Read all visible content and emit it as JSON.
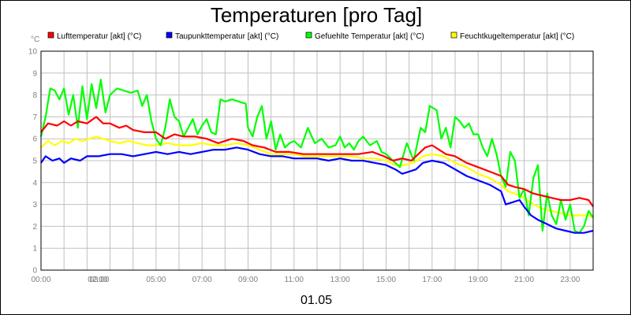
{
  "chart_data": {
    "type": "line",
    "title": "Temperaturen [pro Tag]",
    "ylabel": "°C",
    "xlabel": "01.05",
    "ylim": [
      0,
      10
    ],
    "xlim": [
      0,
      24
    ],
    "grid": true,
    "legend_position": "top",
    "yticks": [
      "0",
      "1",
      "2",
      "3",
      "4",
      "5",
      "6",
      "7",
      "8",
      "9",
      "10"
    ],
    "xticks": [
      {
        "h": 0,
        "label": "00:00"
      },
      {
        "h": 2,
        "label": "02:00"
      },
      {
        "h": 3,
        "label": "03:00"
      },
      {
        "h": 5,
        "label": "05:00"
      },
      {
        "h": 7,
        "label": "07:00"
      },
      {
        "h": 9,
        "label": "09:00"
      },
      {
        "h": 11,
        "label": "11:00"
      },
      {
        "h": 13,
        "label": "13:00"
      },
      {
        "h": 15,
        "label": "15:00"
      },
      {
        "h": 17,
        "label": "17:00"
      },
      {
        "h": 19,
        "label": "19:00"
      },
      {
        "h": 21,
        "label": "21:00"
      },
      {
        "h": 23,
        "label": "23:00"
      }
    ],
    "series": [
      {
        "name": "Lufttemperatur [akt] (°C)",
        "color": "#ff0000",
        "points": [
          [
            0,
            6.3
          ],
          [
            0.3,
            6.7
          ],
          [
            0.7,
            6.6
          ],
          [
            1.0,
            6.8
          ],
          [
            1.3,
            6.6
          ],
          [
            1.6,
            6.8
          ],
          [
            2.0,
            6.7
          ],
          [
            2.4,
            7.0
          ],
          [
            2.7,
            6.7
          ],
          [
            3.0,
            6.7
          ],
          [
            3.4,
            6.5
          ],
          [
            3.7,
            6.6
          ],
          [
            4.0,
            6.4
          ],
          [
            4.5,
            6.3
          ],
          [
            5.0,
            6.3
          ],
          [
            5.4,
            6.0
          ],
          [
            5.8,
            6.2
          ],
          [
            6.2,
            6.1
          ],
          [
            6.7,
            6.1
          ],
          [
            7.2,
            6.0
          ],
          [
            7.7,
            5.8
          ],
          [
            8.3,
            6.0
          ],
          [
            8.8,
            5.9
          ],
          [
            9.2,
            5.7
          ],
          [
            9.7,
            5.6
          ],
          [
            10.2,
            5.4
          ],
          [
            10.8,
            5.4
          ],
          [
            11.4,
            5.3
          ],
          [
            12.0,
            5.3
          ],
          [
            12.6,
            5.3
          ],
          [
            13.2,
            5.3
          ],
          [
            13.8,
            5.3
          ],
          [
            14.4,
            5.4
          ],
          [
            14.9,
            5.2
          ],
          [
            15.3,
            5.0
          ],
          [
            15.7,
            5.1
          ],
          [
            16.1,
            5.0
          ],
          [
            16.4,
            5.3
          ],
          [
            16.7,
            5.6
          ],
          [
            17.0,
            5.7
          ],
          [
            17.3,
            5.5
          ],
          [
            17.6,
            5.3
          ],
          [
            18.0,
            5.2
          ],
          [
            18.5,
            4.9
          ],
          [
            19.0,
            4.7
          ],
          [
            19.5,
            4.5
          ],
          [
            20.0,
            4.3
          ],
          [
            20.3,
            3.9
          ],
          [
            20.6,
            3.8
          ],
          [
            21.0,
            3.7
          ],
          [
            21.4,
            3.5
          ],
          [
            21.8,
            3.4
          ],
          [
            22.2,
            3.3
          ],
          [
            22.6,
            3.2
          ],
          [
            23.0,
            3.2
          ],
          [
            23.4,
            3.3
          ],
          [
            23.8,
            3.2
          ],
          [
            24.0,
            2.9
          ]
        ]
      },
      {
        "name": "Taupunkttemperatur [akt] (°C)",
        "color": "#0000ff",
        "points": [
          [
            0,
            4.9
          ],
          [
            0.2,
            5.2
          ],
          [
            0.5,
            5.0
          ],
          [
            0.8,
            5.1
          ],
          [
            1.0,
            4.9
          ],
          [
            1.3,
            5.1
          ],
          [
            1.7,
            5.0
          ],
          [
            2.0,
            5.2
          ],
          [
            2.5,
            5.2
          ],
          [
            3.0,
            5.3
          ],
          [
            3.5,
            5.3
          ],
          [
            4.0,
            5.2
          ],
          [
            4.5,
            5.3
          ],
          [
            5.0,
            5.4
          ],
          [
            5.5,
            5.3
          ],
          [
            6.0,
            5.4
          ],
          [
            6.5,
            5.3
          ],
          [
            7.0,
            5.4
          ],
          [
            7.5,
            5.5
          ],
          [
            8.0,
            5.5
          ],
          [
            8.5,
            5.6
          ],
          [
            9.0,
            5.5
          ],
          [
            9.5,
            5.3
          ],
          [
            10.0,
            5.2
          ],
          [
            10.5,
            5.2
          ],
          [
            11.0,
            5.1
          ],
          [
            11.5,
            5.1
          ],
          [
            12.0,
            5.1
          ],
          [
            12.5,
            5.0
          ],
          [
            13.0,
            5.1
          ],
          [
            13.5,
            5.0
          ],
          [
            14.0,
            5.0
          ],
          [
            14.5,
            4.9
          ],
          [
            15.0,
            4.8
          ],
          [
            15.4,
            4.6
          ],
          [
            15.7,
            4.4
          ],
          [
            16.0,
            4.5
          ],
          [
            16.3,
            4.6
          ],
          [
            16.6,
            4.9
          ],
          [
            17.0,
            5.0
          ],
          [
            17.5,
            4.9
          ],
          [
            18.0,
            4.6
          ],
          [
            18.5,
            4.3
          ],
          [
            19.0,
            4.1
          ],
          [
            19.5,
            3.9
          ],
          [
            20.0,
            3.6
          ],
          [
            20.2,
            3.0
          ],
          [
            20.5,
            3.1
          ],
          [
            20.8,
            3.2
          ],
          [
            21.0,
            2.9
          ],
          [
            21.3,
            2.5
          ],
          [
            21.6,
            2.3
          ],
          [
            22.0,
            2.1
          ],
          [
            22.4,
            1.9
          ],
          [
            22.8,
            1.8
          ],
          [
            23.2,
            1.7
          ],
          [
            23.6,
            1.7
          ],
          [
            24.0,
            1.8
          ]
        ]
      },
      {
        "name": "Gefuehlte Temperatur [akt] (°C)",
        "color": "#00ff00",
        "points": [
          [
            0,
            6.1
          ],
          [
            0.2,
            7.0
          ],
          [
            0.4,
            8.3
          ],
          [
            0.6,
            8.2
          ],
          [
            0.8,
            7.8
          ],
          [
            1.0,
            8.3
          ],
          [
            1.2,
            7.1
          ],
          [
            1.4,
            8.0
          ],
          [
            1.6,
            6.5
          ],
          [
            1.8,
            8.4
          ],
          [
            2.0,
            6.9
          ],
          [
            2.2,
            8.5
          ],
          [
            2.4,
            7.4
          ],
          [
            2.6,
            8.7
          ],
          [
            2.8,
            7.2
          ],
          [
            3.0,
            8.0
          ],
          [
            3.3,
            8.3
          ],
          [
            3.6,
            8.2
          ],
          [
            3.9,
            8.1
          ],
          [
            4.2,
            8.2
          ],
          [
            4.4,
            7.5
          ],
          [
            4.6,
            8.0
          ],
          [
            4.8,
            6.8
          ],
          [
            5.0,
            6.0
          ],
          [
            5.2,
            5.7
          ],
          [
            5.4,
            6.5
          ],
          [
            5.6,
            7.8
          ],
          [
            5.8,
            7.0
          ],
          [
            6.0,
            6.8
          ],
          [
            6.2,
            6.1
          ],
          [
            6.4,
            6.5
          ],
          [
            6.6,
            6.9
          ],
          [
            6.8,
            6.2
          ],
          [
            7.0,
            6.6
          ],
          [
            7.2,
            6.9
          ],
          [
            7.4,
            6.3
          ],
          [
            7.6,
            6.2
          ],
          [
            7.8,
            7.8
          ],
          [
            8.0,
            7.7
          ],
          [
            8.3,
            7.8
          ],
          [
            8.6,
            7.7
          ],
          [
            8.9,
            7.6
          ],
          [
            9.0,
            6.5
          ],
          [
            9.2,
            6.1
          ],
          [
            9.4,
            7.0
          ],
          [
            9.6,
            7.5
          ],
          [
            9.8,
            6.0
          ],
          [
            10.0,
            6.8
          ],
          [
            10.2,
            5.5
          ],
          [
            10.4,
            6.2
          ],
          [
            10.6,
            5.6
          ],
          [
            10.8,
            5.8
          ],
          [
            11.0,
            5.9
          ],
          [
            11.3,
            5.6
          ],
          [
            11.6,
            6.5
          ],
          [
            11.9,
            5.8
          ],
          [
            12.2,
            6.0
          ],
          [
            12.5,
            5.6
          ],
          [
            12.8,
            5.7
          ],
          [
            13.0,
            6.1
          ],
          [
            13.2,
            5.6
          ],
          [
            13.4,
            5.8
          ],
          [
            13.6,
            5.5
          ],
          [
            13.8,
            5.9
          ],
          [
            14.0,
            6.1
          ],
          [
            14.3,
            5.7
          ],
          [
            14.6,
            5.9
          ],
          [
            14.8,
            5.4
          ],
          [
            15.0,
            5.3
          ],
          [
            15.3,
            5.0
          ],
          [
            15.6,
            4.7
          ],
          [
            15.9,
            5.8
          ],
          [
            16.2,
            5.0
          ],
          [
            16.5,
            6.5
          ],
          [
            16.7,
            6.3
          ],
          [
            16.9,
            7.5
          ],
          [
            17.2,
            7.3
          ],
          [
            17.4,
            6.0
          ],
          [
            17.6,
            6.5
          ],
          [
            17.8,
            5.6
          ],
          [
            18.0,
            7.0
          ],
          [
            18.2,
            6.8
          ],
          [
            18.4,
            6.5
          ],
          [
            18.6,
            6.7
          ],
          [
            18.8,
            6.2
          ],
          [
            19.0,
            6.2
          ],
          [
            19.2,
            5.6
          ],
          [
            19.4,
            5.2
          ],
          [
            19.6,
            6.0
          ],
          [
            19.8,
            5.3
          ],
          [
            20.0,
            4.3
          ],
          [
            20.2,
            3.8
          ],
          [
            20.4,
            5.4
          ],
          [
            20.6,
            5.0
          ],
          [
            20.8,
            3.3
          ],
          [
            21.0,
            3.7
          ],
          [
            21.2,
            2.5
          ],
          [
            21.4,
            4.2
          ],
          [
            21.6,
            4.8
          ],
          [
            21.8,
            1.8
          ],
          [
            22.0,
            3.5
          ],
          [
            22.2,
            2.5
          ],
          [
            22.4,
            2.1
          ],
          [
            22.6,
            3.2
          ],
          [
            22.8,
            2.3
          ],
          [
            23.0,
            3.0
          ],
          [
            23.2,
            1.8
          ],
          [
            23.4,
            1.7
          ],
          [
            23.6,
            2.0
          ],
          [
            23.8,
            2.7
          ],
          [
            24.0,
            2.4
          ]
        ]
      },
      {
        "name": "Feuchtkugeltemperatur [akt] (°C)",
        "color": "#ffff00",
        "points": [
          [
            0,
            5.6
          ],
          [
            0.3,
            5.9
          ],
          [
            0.6,
            5.7
          ],
          [
            0.9,
            5.9
          ],
          [
            1.2,
            5.8
          ],
          [
            1.5,
            6.0
          ],
          [
            1.8,
            5.9
          ],
          [
            2.1,
            6.0
          ],
          [
            2.4,
            6.1
          ],
          [
            2.7,
            6.0
          ],
          [
            3.0,
            5.9
          ],
          [
            3.4,
            5.8
          ],
          [
            3.8,
            5.9
          ],
          [
            4.2,
            5.8
          ],
          [
            4.6,
            5.7
          ],
          [
            5.0,
            5.7
          ],
          [
            5.5,
            5.8
          ],
          [
            6.0,
            5.7
          ],
          [
            6.5,
            5.7
          ],
          [
            7.0,
            5.8
          ],
          [
            7.5,
            5.7
          ],
          [
            8.0,
            5.7
          ],
          [
            8.5,
            5.8
          ],
          [
            9.0,
            5.7
          ],
          [
            9.5,
            5.5
          ],
          [
            10.0,
            5.3
          ],
          [
            10.5,
            5.3
          ],
          [
            11.0,
            5.3
          ],
          [
            11.5,
            5.2
          ],
          [
            12.0,
            5.2
          ],
          [
            12.5,
            5.2
          ],
          [
            13.0,
            5.2
          ],
          [
            13.5,
            5.2
          ],
          [
            14.0,
            5.1
          ],
          [
            14.5,
            5.1
          ],
          [
            15.0,
            5.0
          ],
          [
            15.4,
            4.8
          ],
          [
            15.8,
            4.8
          ],
          [
            16.2,
            4.9
          ],
          [
            16.6,
            5.2
          ],
          [
            17.0,
            5.3
          ],
          [
            17.5,
            5.2
          ],
          [
            18.0,
            4.9
          ],
          [
            18.5,
            4.7
          ],
          [
            19.0,
            4.4
          ],
          [
            19.5,
            4.2
          ],
          [
            20.0,
            3.9
          ],
          [
            20.3,
            3.6
          ],
          [
            20.6,
            3.5
          ],
          [
            21.0,
            3.3
          ],
          [
            21.4,
            3.0
          ],
          [
            21.8,
            2.8
          ],
          [
            22.2,
            2.7
          ],
          [
            22.6,
            2.6
          ],
          [
            23.0,
            2.5
          ],
          [
            23.4,
            2.5
          ],
          [
            23.8,
            2.5
          ],
          [
            24.0,
            2.4
          ]
        ]
      }
    ]
  }
}
